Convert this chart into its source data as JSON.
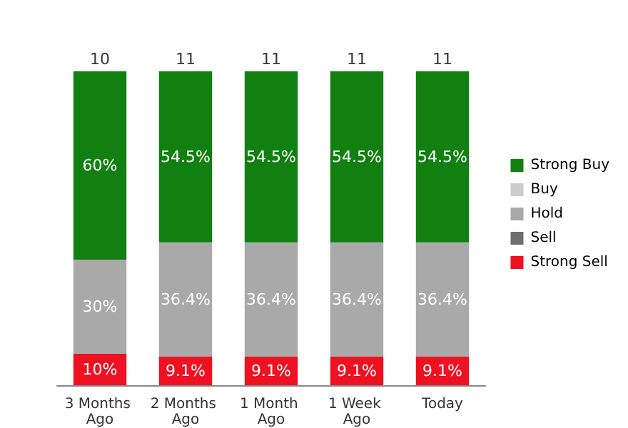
{
  "chart_data": {
    "type": "bar",
    "stacked": true,
    "categories": [
      "3 Months Ago",
      "2 Months Ago",
      "1 Month Ago",
      "1 Week Ago",
      "Today"
    ],
    "series": [
      {
        "name": "Strong Sell",
        "color": "#ee1122",
        "values": [
          10,
          9.1,
          9.1,
          9.1,
          9.1
        ],
        "value_labels": [
          "10%",
          "9.1%",
          "9.1%",
          "9.1%",
          "9.1%"
        ]
      },
      {
        "name": "Sell",
        "color": "#6e6e6e",
        "values": [
          null,
          null,
          null,
          null,
          null
        ]
      },
      {
        "name": "Hold",
        "color": "#a9a9a9",
        "values": [
          30,
          36.4,
          36.4,
          36.4,
          36.4
        ],
        "value_labels": [
          "30%",
          "36.4%",
          "36.4%",
          "36.4%",
          "36.4%"
        ]
      },
      {
        "name": "Buy",
        "color": "#cccccc",
        "values": [
          null,
          null,
          null,
          null,
          null
        ]
      },
      {
        "name": "Strong Buy",
        "color": "#118011",
        "values": [
          60,
          54.5,
          54.5,
          54.5,
          54.5
        ],
        "value_labels": [
          "60%",
          "54.5%",
          "54.5%",
          "54.5%",
          "54.5%"
        ]
      }
    ],
    "annotations": [
      {
        "text": "10",
        "x": "3 Months Ago",
        "y": 100
      },
      {
        "text": "11",
        "x": "2 Months Ago",
        "y": 100
      },
      {
        "text": "11",
        "x": "1 Month Ago",
        "y": 100
      },
      {
        "text": "11",
        "x": "1 Week Ago",
        "y": 100
      },
      {
        "text": "11",
        "x": "Today",
        "y": 100
      }
    ],
    "legend": "right"
  }
}
